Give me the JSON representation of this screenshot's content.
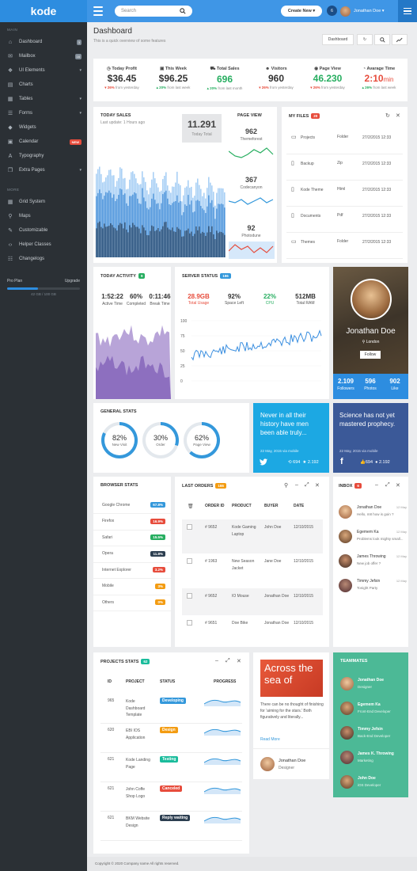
{
  "app": {
    "logo": "kode",
    "search_placeholder": "Search",
    "create_label": "Create New",
    "notif_count": "6",
    "user_name": "Jonathan Doe"
  },
  "sidebar": {
    "main_heading": "MAIN",
    "items": [
      {
        "label": "Dashboard",
        "icon": "home-icon",
        "badge": "3"
      },
      {
        "label": "Mailbox",
        "icon": "mail-icon",
        "badge": "16"
      },
      {
        "label": "UI Elements",
        "icon": "cube-icon",
        "arrow": true
      },
      {
        "label": "Charts",
        "icon": "chart-icon"
      },
      {
        "label": "Tables",
        "icon": "table-icon",
        "arrow": true
      },
      {
        "label": "Forms",
        "icon": "form-icon",
        "arrow": true
      },
      {
        "label": "Widgets",
        "icon": "diamond-icon"
      },
      {
        "label": "Calendar",
        "icon": "calendar-icon",
        "new": "NEW"
      },
      {
        "label": "Typography",
        "icon": "font-icon"
      },
      {
        "label": "Extra Pages",
        "icon": "pages-icon",
        "arrow": true
      }
    ],
    "more_heading": "MORE",
    "more_items": [
      {
        "label": "Grid System",
        "icon": "grid-icon"
      },
      {
        "label": "Maps",
        "icon": "map-marker-icon"
      },
      {
        "label": "Customizable",
        "icon": "brush-icon"
      },
      {
        "label": "Helper Classes",
        "icon": "code-icon"
      },
      {
        "label": "Changelogs",
        "icon": "changelog-icon"
      }
    ],
    "plan": {
      "label": "Pro Plan",
      "upgrade": "Upgrade",
      "usage": "42 GB / 100 GB",
      "used_fraction": 0.42
    }
  },
  "header": {
    "title": "Dashboard",
    "subtitle": "This is a quick overview of some features",
    "btn_dashboard": "Dashboard"
  },
  "stats": [
    {
      "label": "Today Profit",
      "icon": "clock-icon",
      "value": "$36.45",
      "pct": "26%",
      "dir": "down",
      "ft": "from yesterday",
      "color": "#333333"
    },
    {
      "label": "This Week",
      "icon": "calendar-icon",
      "value": "$96.25",
      "pct": "20%",
      "dir": "up",
      "ft": "from last week",
      "color": "#333333"
    },
    {
      "label": "Total Sales",
      "icon": "cart-icon",
      "value": "696",
      "pct": "20%",
      "dir": "up",
      "ft": "from last month",
      "color": "#27ae60"
    },
    {
      "label": "Visitors",
      "icon": "users-icon",
      "value": "960",
      "pct": "26%",
      "dir": "down",
      "ft": "from yesterday",
      "color": "#333333"
    },
    {
      "label": "Page View",
      "icon": "eye-icon",
      "value": "46.230",
      "pct": "26%",
      "dir": "down",
      "ft": "from yesterday",
      "color": "#27ae60"
    },
    {
      "label": "Avarage Time",
      "icon": "time-icon",
      "value": "2:10",
      "unit": "min",
      "pct": "26%",
      "dir": "up",
      "ft": "from last week",
      "color": "#e74c3c"
    }
  ],
  "today_sales": {
    "title": "TODAY SALES",
    "update": "Last update: 1 Hours ago",
    "total": "11.291",
    "total_label": "Today Total"
  },
  "page_view": {
    "title": "PAGE VIEW",
    "items": [
      {
        "value": "962",
        "label": "Themeforest"
      },
      {
        "value": "367",
        "label": "Codecanyon"
      },
      {
        "value": "92",
        "label": "Photodune"
      }
    ]
  },
  "files": {
    "title": "MY FILES",
    "badge": "20",
    "rows": [
      {
        "name": "Projects",
        "type": "Folder",
        "date": "27/2/2015 12:33"
      },
      {
        "name": "Backup",
        "type": "Zip",
        "date": "27/2/2015 12:33"
      },
      {
        "name": "Kode Theme",
        "type": "Html",
        "date": "27/2/2015 12:33"
      },
      {
        "name": "Documents",
        "type": "Pdf",
        "date": "27/2/2015 12:33"
      },
      {
        "name": "Themes",
        "type": "Folder",
        "date": "27/2/2015 12:33"
      }
    ]
  },
  "activity": {
    "title": "TODAY ACTIVITY",
    "badge": "9",
    "items": [
      {
        "value": "1:52:22",
        "label": "Active Time"
      },
      {
        "value": "60%",
        "label": "Completed"
      },
      {
        "value": "0:11:46",
        "label": "Break Time"
      }
    ]
  },
  "server": {
    "title": "SERVER STATUS",
    "badge": "196",
    "items": [
      {
        "value": "28.9GB",
        "label": "Total Usage",
        "color": "#e74c3c"
      },
      {
        "value": "92%",
        "label": "Space Left",
        "color": "#333333"
      },
      {
        "value": "22%",
        "label": "CPU",
        "color": "#27ae60"
      },
      {
        "value": "512MB",
        "label": "Total RAM",
        "color": "#333333"
      }
    ],
    "yticks": [
      "100",
      "75",
      "50",
      "25",
      "0"
    ]
  },
  "profile": {
    "name": "Jonathan Doe",
    "location": "London",
    "follow": "Follow",
    "stats": [
      {
        "value": "2.109",
        "label": "Followers"
      },
      {
        "value": "596",
        "label": "Photos"
      },
      {
        "value": "902",
        "label": "Like"
      }
    ]
  },
  "general": {
    "title": "GENERAL STATS",
    "gauges": [
      {
        "value": "82%",
        "label": "New Visit",
        "fraction": 0.82
      },
      {
        "value": "30%",
        "label": "Order",
        "fraction": 0.3
      },
      {
        "value": "62%",
        "label": "Page View",
        "fraction": 0.62
      }
    ]
  },
  "tweet": {
    "text": "Never in all their history have men been able truly...",
    "meta": "22 May, 2015 via mobile",
    "rt": "694",
    "fav": "2.192"
  },
  "fb": {
    "text": "Science has not yet mastered prophecy.",
    "meta": "22 May, 2015 via mobile",
    "likes": "694",
    "comments": "2.192"
  },
  "browser": {
    "title": "BROWSER STATS",
    "rows": [
      {
        "name": "Google Chrome",
        "value": "67.8%",
        "color": "#3498db"
      },
      {
        "name": "Firefox",
        "value": "16.9%",
        "color": "#e74c3c"
      },
      {
        "name": "Safari",
        "value": "15.5%",
        "color": "#27ae60"
      },
      {
        "name": "Opera",
        "value": "11.8%",
        "color": "#2c3e50"
      },
      {
        "name": "Internet Explorer",
        "value": "3.2%",
        "color": "#e74c3c"
      },
      {
        "name": "Mobile",
        "value": "3%",
        "color": "#f39c12"
      },
      {
        "name": "Others",
        "value": "0%",
        "color": "#f39c12"
      }
    ]
  },
  "orders": {
    "title": "LAST ORDERS",
    "badge": "166",
    "headers": [
      "ORDER ID",
      "PRODUCT",
      "BUYER",
      "DATE"
    ],
    "rows": [
      {
        "id": "# 9652",
        "product": "Kode Gaming Laptop",
        "buyer": "John Doe",
        "date": "12/10/2015"
      },
      {
        "id": "# 1963",
        "product": "New Season Jacket",
        "buyer": "Jane Doe",
        "date": "12/10/2015"
      },
      {
        "id": "# 9652",
        "product": "IO Mouse",
        "buyer": "Jonathan Doe",
        "date": "12/10/2015"
      },
      {
        "id": "# 9651",
        "product": "Doe Bike",
        "buyer": "Jonathan Doe",
        "date": "12/10/2015"
      }
    ]
  },
  "inbox": {
    "title": "INBOX",
    "badge": "6",
    "items": [
      {
        "name": "Jonathan Doe",
        "time": "12 May",
        "msg": "Hello, m8 how is goin ?"
      },
      {
        "name": "Egemem Ka",
        "time": "12 May",
        "msg": "Problems look mighty small..."
      },
      {
        "name": "James Throwing",
        "time": "12 May",
        "msg": "New job offer ?"
      },
      {
        "name": "Timmy Jefsin",
        "time": "12 May",
        "msg": "Tonight Party"
      }
    ]
  },
  "projects": {
    "title": "PROJECTS STATS",
    "badge": "62",
    "headers": [
      "ID",
      "PROJECT",
      "STATUS",
      "PROGRESS"
    ],
    "rows": [
      {
        "id": "965",
        "name": "Kode Dashboard Template",
        "status": "Developing",
        "color": "#3498db"
      },
      {
        "id": "620",
        "name": "EBI IOS Application",
        "status": "Design",
        "color": "#f39c12"
      },
      {
        "id": "621",
        "name": "Kode Landing Page",
        "status": "Testing",
        "color": "#1abc9c"
      },
      {
        "id": "621",
        "name": "John Coffe Shop Logo",
        "status": "Canceled",
        "color": "#e74c3c"
      },
      {
        "id": "621",
        "name": "BKM Website Design",
        "status": "Reply waiting",
        "color": "#2c3e50"
      }
    ]
  },
  "blog": {
    "headline": "Across the sea of",
    "excerpt": "There can be no thought of finishing for 'aiming for the stars.' Both figuratively and literally...",
    "read_more": "Read More",
    "author": "Jonathan Doe",
    "role": "Designer"
  },
  "team": {
    "title": "TEAMMATES",
    "members": [
      {
        "name": "Jonathan Doe",
        "role": "Designer"
      },
      {
        "name": "Egemem Ka",
        "role": "Front-End Developer"
      },
      {
        "name": "Timmy Jefsin",
        "role": "Back-End Developer"
      },
      {
        "name": "James K. Throwing",
        "role": "Marketing"
      },
      {
        "name": "John Doe",
        "role": "iOS Developer"
      }
    ]
  },
  "footer": {
    "text": "Copyright © 2020 Company name All rights reserved."
  }
}
